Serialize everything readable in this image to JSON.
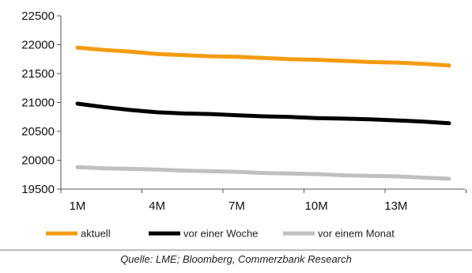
{
  "chart_data": {
    "type": "line",
    "x_labels": [
      "1M",
      "4M",
      "7M",
      "10M",
      "13M"
    ],
    "x_points": [
      "1M",
      "2M",
      "3M",
      "4M",
      "5M",
      "6M",
      "7M",
      "8M",
      "9M",
      "10M",
      "11M",
      "12M",
      "13M",
      "14M",
      "15M"
    ],
    "y_ticks": [
      19500,
      20000,
      20500,
      21000,
      21500,
      22000,
      22500
    ],
    "ylim": [
      19500,
      22500
    ],
    "grid": false,
    "legend_position": "bottom",
    "series": [
      {
        "name": "aktuell",
        "color": "#f39c12",
        "values": [
          21950,
          21910,
          21880,
          21840,
          21820,
          21800,
          21790,
          21770,
          21750,
          21740,
          21720,
          21700,
          21690,
          21670,
          21640
        ]
      },
      {
        "name": "vor einer Woche",
        "color": "#000000",
        "values": [
          20980,
          20920,
          20870,
          20830,
          20810,
          20800,
          20780,
          20760,
          20750,
          20730,
          20720,
          20710,
          20690,
          20670,
          20640
        ]
      },
      {
        "name": "vor einem Monat",
        "color": "#c0c0c0",
        "values": [
          19880,
          19860,
          19850,
          19840,
          19820,
          19810,
          19800,
          19780,
          19770,
          19760,
          19740,
          19730,
          19720,
          19700,
          19680
        ]
      }
    ]
  },
  "source": "Quelle: LME; Bloomberg, Commerzbank Research"
}
